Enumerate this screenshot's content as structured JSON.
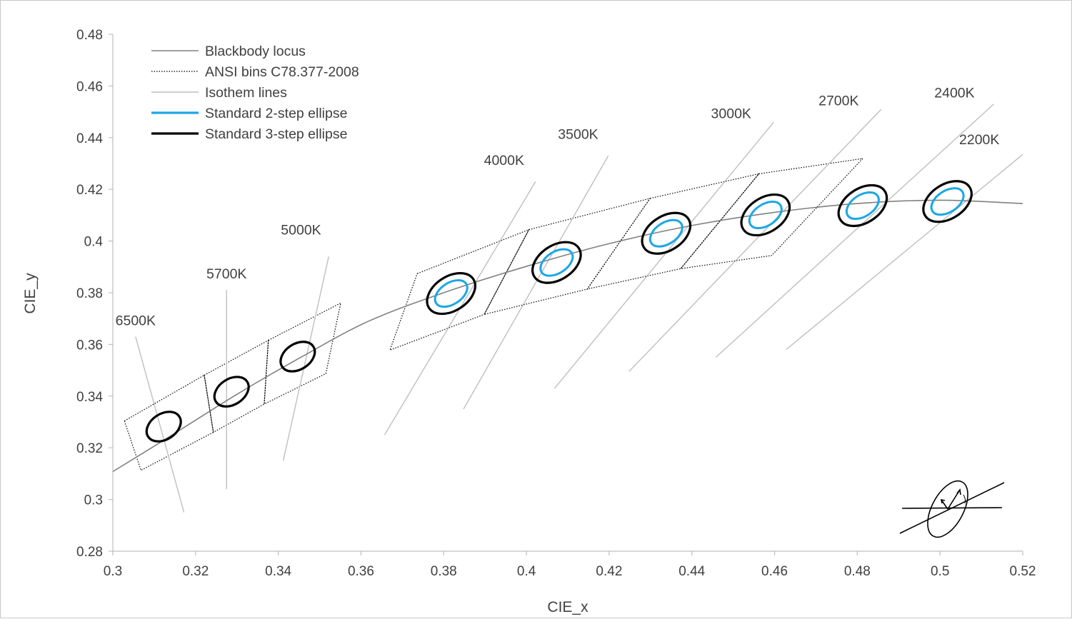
{
  "chart_data": {
    "type": "scatter",
    "xlabel": "CIE_x",
    "ylabel": "CIE_y",
    "xlim": [
      0.3,
      0.52
    ],
    "ylim": [
      0.28,
      0.48
    ],
    "x_ticks": [
      "0.3",
      "0.32",
      "0.34",
      "0.36",
      "0.38",
      "0.4",
      "0.42",
      "0.44",
      "0.46",
      "0.48",
      "0.5",
      "0.52"
    ],
    "y_ticks": [
      "0.28",
      "0.3",
      "0.32",
      "0.34",
      "0.36",
      "0.38",
      "0.4",
      "0.42",
      "0.44",
      "0.46",
      "0.48"
    ],
    "grid": false,
    "legend_placement": "top-left",
    "legend": [
      {
        "label": "Blackbody locus",
        "style": "solid",
        "color": "#808080"
      },
      {
        "label": "ANSI bins C78.377-2008",
        "style": "dotted",
        "color": "#000000"
      },
      {
        "label": "Isothem lines",
        "style": "solid",
        "color": "#bfbfbf"
      },
      {
        "label": "Standard 2-step ellipse",
        "style": "solid",
        "color": "#1ca7e4"
      },
      {
        "label": "Standard 3-step ellipse",
        "style": "solid",
        "color": "#000000"
      }
    ],
    "blackbody_locus": [
      [
        0.3,
        0.3108
      ],
      [
        0.313,
        0.3236
      ],
      [
        0.33,
        0.3407
      ],
      [
        0.346,
        0.3555
      ],
      [
        0.362,
        0.3691
      ],
      [
        0.38,
        0.38
      ],
      [
        0.4,
        0.3902
      ],
      [
        0.42,
        0.399
      ],
      [
        0.44,
        0.406
      ],
      [
        0.46,
        0.4111
      ],
      [
        0.48,
        0.4145
      ],
      [
        0.5,
        0.4158
      ],
      [
        0.52,
        0.4145
      ]
    ],
    "cct_points": [
      {
        "label": "6500K",
        "x": 0.3123,
        "y": 0.3282,
        "label_x": 0.3055,
        "label_y": 0.3675
      },
      {
        "label": "5700K",
        "x": 0.3287,
        "y": 0.3417,
        "label_x": 0.3275,
        "label_y": 0.3855
      },
      {
        "label": "5000K",
        "x": 0.3447,
        "y": 0.3553,
        "label_x": 0.3455,
        "label_y": 0.4025
      },
      {
        "label": "4000K",
        "x": 0.3818,
        "y": 0.3797,
        "label_x": 0.3946,
        "label_y": 0.4295
      },
      {
        "label": "3500K",
        "x": 0.4073,
        "y": 0.3917,
        "label_x": 0.4125,
        "label_y": 0.4395
      },
      {
        "label": "3000K",
        "x": 0.4338,
        "y": 0.403,
        "label_x": 0.4495,
        "label_y": 0.4475
      },
      {
        "label": "2700K",
        "x": 0.4578,
        "y": 0.4101,
        "label_x": 0.4755,
        "label_y": 0.4525
      },
      {
        "label": "2400K",
        "x": 0.4813,
        "y": 0.4137,
        "label_x": 0.5035,
        "label_y": 0.4555
      },
      {
        "label": "2200K",
        "x": 0.5018,
        "y": 0.4153,
        "label_x": 0.5095,
        "label_y": 0.4375
      }
    ],
    "isotherm_lines": [
      {
        "cct": "6500K",
        "x1": 0.3055,
        "y1": 0.363,
        "x2": 0.3172,
        "y2": 0.295
      },
      {
        "cct": "5700K",
        "x1": 0.3275,
        "y1": 0.381,
        "x2": 0.3275,
        "y2": 0.304
      },
      {
        "cct": "5000K",
        "x1": 0.3522,
        "y1": 0.394,
        "x2": 0.3412,
        "y2": 0.315
      },
      {
        "cct": "4000K",
        "x1": 0.4022,
        "y1": 0.423,
        "x2": 0.3657,
        "y2": 0.325
      },
      {
        "cct": "3500K",
        "x1": 0.4198,
        "y1": 0.433,
        "x2": 0.3848,
        "y2": 0.335
      },
      {
        "cct": "3000K",
        "x1": 0.4598,
        "y1": 0.446,
        "x2": 0.4068,
        "y2": 0.343
      },
      {
        "cct": "2700K",
        "x1": 0.4858,
        "y1": 0.451,
        "x2": 0.4248,
        "y2": 0.3495
      },
      {
        "cct": "2400K",
        "x1": 0.513,
        "y1": 0.453,
        "x2": 0.4458,
        "y2": 0.355
      },
      {
        "cct": "2200K",
        "x1": 0.52,
        "y1": 0.4335,
        "x2": 0.4628,
        "y2": 0.358
      }
    ],
    "ansi_bins": [
      {
        "cct": "6500K",
        "quad": [
          [
            0.3028,
            0.3304
          ],
          [
            0.3221,
            0.3481
          ],
          [
            0.3243,
            0.326
          ],
          [
            0.3068,
            0.3113
          ]
        ]
      },
      {
        "cct": "5700K",
        "quad": [
          [
            0.3221,
            0.3481
          ],
          [
            0.3376,
            0.3616
          ],
          [
            0.3366,
            0.3369
          ],
          [
            0.3243,
            0.326
          ]
        ]
      },
      {
        "cct": "5000K",
        "quad": [
          [
            0.3376,
            0.3616
          ],
          [
            0.3551,
            0.376
          ],
          [
            0.3515,
            0.3487
          ],
          [
            0.3366,
            0.3369
          ]
        ]
      },
      {
        "cct": "4000K",
        "quad": [
          [
            0.3736,
            0.3874
          ],
          [
            0.4006,
            0.4044
          ],
          [
            0.3898,
            0.3716
          ],
          [
            0.367,
            0.3578
          ]
        ]
      },
      {
        "cct": "3500K",
        "quad": [
          [
            0.4006,
            0.4044
          ],
          [
            0.4299,
            0.4165
          ],
          [
            0.4147,
            0.3814
          ],
          [
            0.3898,
            0.3716
          ]
        ]
      },
      {
        "cct": "3000K",
        "quad": [
          [
            0.4299,
            0.4165
          ],
          [
            0.4562,
            0.426
          ],
          [
            0.4373,
            0.3893
          ],
          [
            0.4147,
            0.3814
          ]
        ]
      },
      {
        "cct": "2700K",
        "quad": [
          [
            0.4562,
            0.426
          ],
          [
            0.4813,
            0.4319
          ],
          [
            0.4593,
            0.3944
          ],
          [
            0.4373,
            0.3893
          ]
        ]
      }
    ],
    "step3_ellipses": [
      {
        "cct": "6500K",
        "x": 0.3123,
        "y": 0.3282
      },
      {
        "cct": "5700K",
        "x": 0.3287,
        "y": 0.3417
      },
      {
        "cct": "5000K",
        "x": 0.3447,
        "y": 0.3553
      },
      {
        "cct": "4000K",
        "x": 0.3818,
        "y": 0.3797
      },
      {
        "cct": "3500K",
        "x": 0.4073,
        "y": 0.3917
      },
      {
        "cct": "3000K",
        "x": 0.4338,
        "y": 0.403
      },
      {
        "cct": "2700K",
        "x": 0.4578,
        "y": 0.4101
      },
      {
        "cct": "2400K",
        "x": 0.4813,
        "y": 0.4137
      },
      {
        "cct": "2200K",
        "x": 0.5018,
        "y": 0.4153
      }
    ],
    "step2_ellipses": [
      {
        "cct": "4000K",
        "x": 0.3818,
        "y": 0.3797
      },
      {
        "cct": "3500K",
        "x": 0.4073,
        "y": 0.3917
      },
      {
        "cct": "3000K",
        "x": 0.4338,
        "y": 0.403
      },
      {
        "cct": "2700K",
        "x": 0.4578,
        "y": 0.4101
      },
      {
        "cct": "2400K",
        "x": 0.4813,
        "y": 0.4137
      },
      {
        "cct": "2200K",
        "x": 0.5018,
        "y": 0.4153
      }
    ],
    "colors": {
      "locus": "#808080",
      "ansi": "#000000",
      "isotherm": "#bfbfbf",
      "step2": "#1ca7e4",
      "step3": "#000000",
      "axis": "#bfbfbf",
      "text": "#404040"
    },
    "inset_diagram": "ellipse-parameter-diagram"
  }
}
